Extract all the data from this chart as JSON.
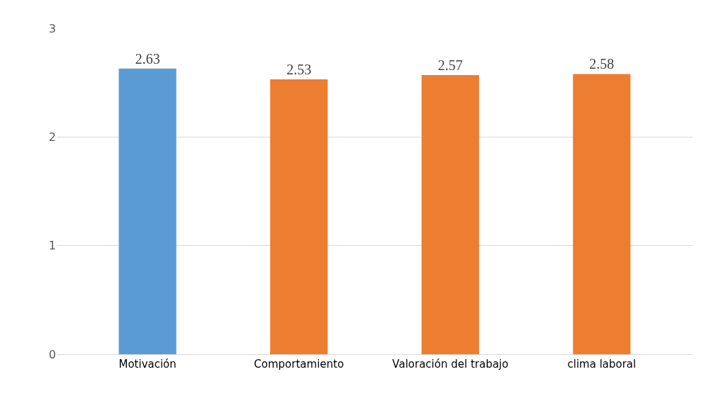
{
  "chart_data": {
    "type": "bar",
    "categories": [
      "Motivación",
      "Comportamiento",
      "Valoración del trabajo",
      "clima laboral"
    ],
    "values": [
      2.63,
      2.53,
      2.57,
      2.58
    ],
    "colors": [
      "#5b9bd5",
      "#ed7d31",
      "#ed7d31",
      "#ed7d31"
    ],
    "ylim": [
      0,
      3
    ],
    "yticks": [
      0,
      1,
      2,
      3
    ],
    "grid": "y",
    "data_labels": true
  }
}
